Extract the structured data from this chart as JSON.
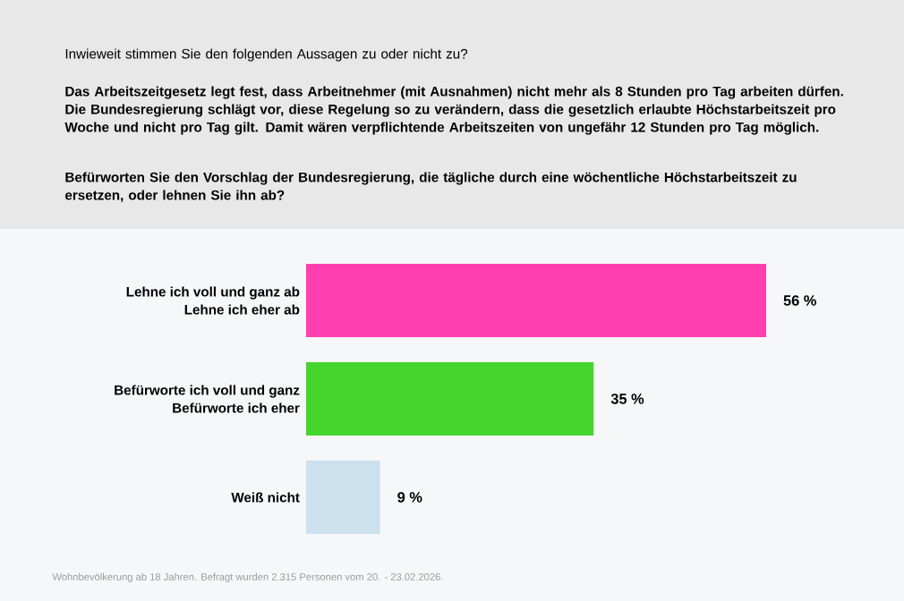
{
  "chart_data": {
    "type": "bar",
    "orientation": "horizontal",
    "title": "Inwieweit stimmen Sie den folgenden Aussagen zu oder nicht zu?",
    "subtitle": "Das Arbeitszeitgesetz legt fest, dass Arbeitnehmer (mit Ausnahmen) nicht mehr als 8 Stunden pro Tag arbeiten dürfen. Die Bundesregierung schlägt vor, diese Regelung so zu verändern, dass die gesetzlich erlaubte Höchstarbeitszeit pro Woche und nicht pro Tag gilt. Damit wären verpflichtende Arbeitszeiten von ungefähr 12 Stunden pro Tag möglich.",
    "annotations": [
      "Befürworten Sie den Vorschlag der Bundesregierung, die tägliche durch eine wöchentliche Höchstarbeitszeit zu ersetzen, oder lehnen Sie ihn ab?",
      "Wohnbevölkerung ab 18 Jahren. Befragt wurden 2.315 Personen vom 20. - 23.02.2026."
    ],
    "categories": [
      "Lehne ich voll und ganz ab Lehne ich eher ab",
      "Befürworte ich voll und ganz Befürworte ich eher",
      "Weiß nicht"
    ],
    "values": [
      56,
      35,
      9
    ],
    "colors": [
      "#ff3fb0",
      "#44d62c",
      "#cce0ee"
    ],
    "value_labels": [
      "56 %",
      "35 %",
      "9 %"
    ]
  }
}
